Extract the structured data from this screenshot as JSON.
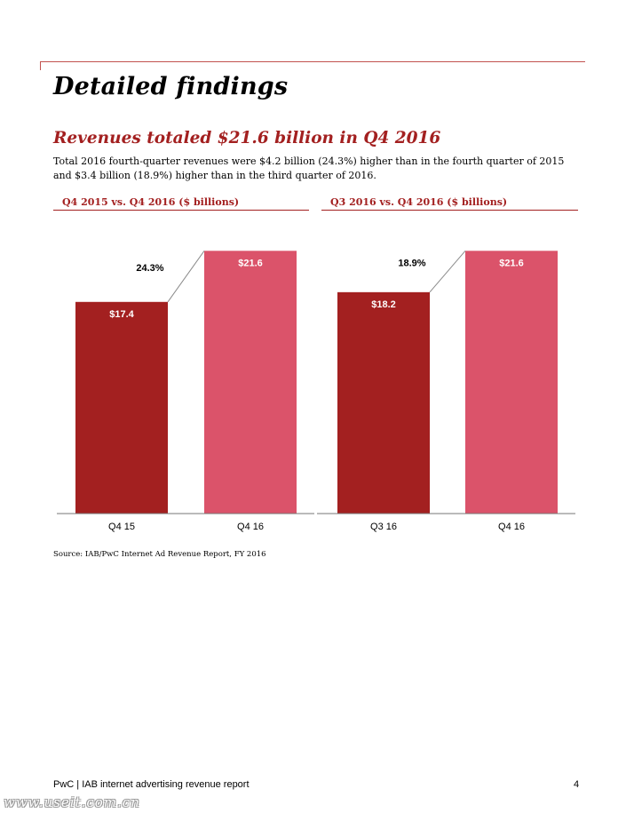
{
  "page": {
    "title": "Detailed findings",
    "subtitle": "Revenues totaled $21.6 billion in Q4 2016",
    "body": "Total 2016 fourth-quarter revenues were $4.2 billion (24.3%) higher than in the fourth quarter of 2015 and $3.4 billion (18.9%) higher than in the third quarter of 2016.",
    "source": "Source: IAB/PwC Internet Ad Revenue Report, FY 2016",
    "footer_left": "PwC | IAB internet advertising revenue report",
    "page_number": "4",
    "watermark": "www.useit.com.cn"
  },
  "colors": {
    "dark_red": "#a32020",
    "pink": "#db536a",
    "accent_text": "#a32020"
  },
  "chart_data": [
    {
      "type": "bar",
      "title": "Q4 2015 vs. Q4 2016 ($ billions)",
      "categories": [
        "Q4 15",
        "Q4 16"
      ],
      "values": [
        17.4,
        21.6
      ],
      "value_labels": [
        "$17.4",
        "$21.6"
      ],
      "bar_colors": [
        "#a32020",
        "#db536a"
      ],
      "growth_label": "24.3%",
      "xlabel": "",
      "ylabel": "",
      "ylim": [
        0,
        25
      ]
    },
    {
      "type": "bar",
      "title": "Q3 2016 vs. Q4 2016 ($ billions)",
      "categories": [
        "Q3 16",
        "Q4 16"
      ],
      "values": [
        18.2,
        21.6
      ],
      "value_labels": [
        "$18.2",
        "$21.6"
      ],
      "bar_colors": [
        "#a32020",
        "#db536a"
      ],
      "growth_label": "18.9%",
      "xlabel": "",
      "ylabel": "",
      "ylim": [
        0,
        25
      ]
    }
  ]
}
